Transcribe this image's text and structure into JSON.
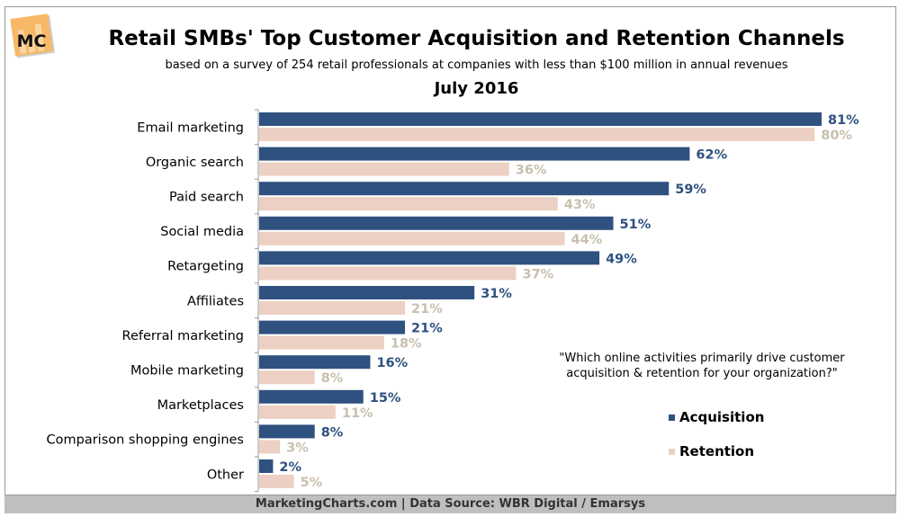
{
  "logo_text": "MC",
  "chart_data": {
    "type": "bar",
    "orientation": "horizontal",
    "title": "Retail SMBs' Top Customer Acquisition and Retention Channels",
    "subtitle": "based on a survey of 254 retail professionals at companies with less than $100 million in annual revenues",
    "date": "July 2016",
    "categories": [
      "Email marketing",
      "Organic search",
      "Paid search",
      "Social media",
      "Retargeting",
      "Affiliates",
      "Referral marketing",
      "Mobile marketing",
      "Marketplaces",
      "Comparison shopping engines",
      "Other"
    ],
    "series": [
      {
        "name": "Acquisition",
        "color": "#2f5180",
        "values": [
          81,
          62,
          59,
          51,
          49,
          31,
          21,
          16,
          15,
          8,
          2
        ]
      },
      {
        "name": "Retention",
        "color": "#ecd0c3",
        "label_color": "#c9bfae",
        "values": [
          80,
          36,
          43,
          44,
          37,
          21,
          18,
          8,
          11,
          3,
          5
        ]
      }
    ],
    "value_suffix": "%",
    "xlim": [
      0,
      81
    ],
    "grid": false,
    "legend_position": "right",
    "annotation": "\"Which online activities primarily drive customer acquisition & retention for your organization?\""
  },
  "footer": "MarketingCharts.com | Data Source: WBR Digital / Emarsys"
}
